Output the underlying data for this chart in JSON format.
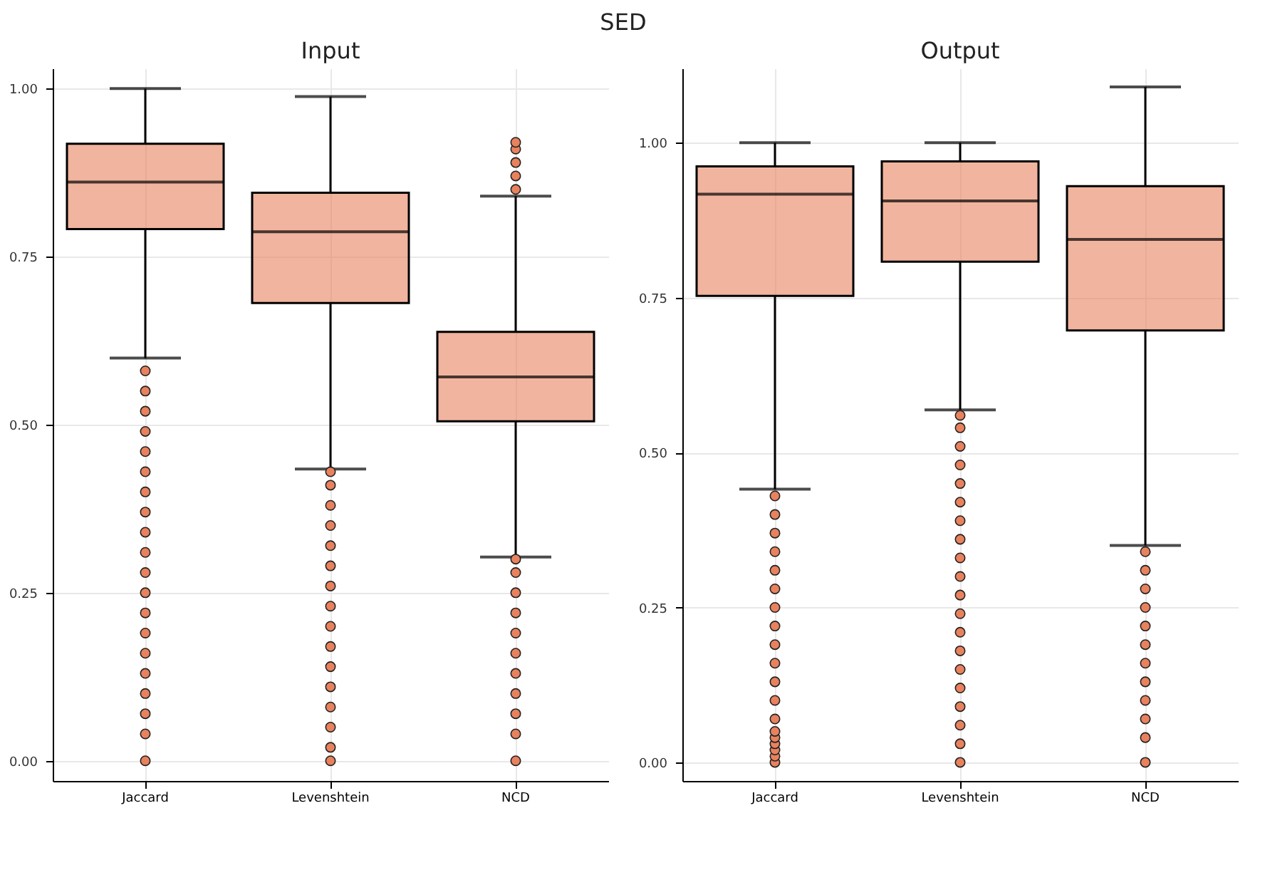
{
  "chart_data": [
    {
      "type": "box",
      "title": "Input",
      "annotations": [
        "SED"
      ],
      "categories": [
        "Jaccard",
        "Levenshtein",
        "NCD"
      ],
      "ylim": [
        -0.03,
        1.03
      ],
      "yticks": [
        {
          "value": 0,
          "label": "0.00"
        },
        {
          "value": 0.25,
          "label": "0.25"
        },
        {
          "value": 0.5,
          "label": "0.50"
        },
        {
          "value": 0.75,
          "label": "0.75"
        },
        {
          "value": 1,
          "label": "1.00"
        }
      ],
      "grid": true,
      "marker": "circle",
      "series": [
        {
          "color": "#e8825e",
          "boxes": [
            {
              "low": 0.599,
              "q1": 0.791,
              "median": 0.861,
              "q3": 0.918,
              "high": 1.0,
              "outliers": [
                0.0,
                0.04,
                0.07,
                0.1,
                0.13,
                0.16,
                0.19,
                0.22,
                0.25,
                0.28,
                0.31,
                0.34,
                0.37,
                0.4,
                0.43,
                0.46,
                0.49,
                0.52,
                0.55,
                0.58
              ]
            },
            {
              "low": 0.434,
              "q1": 0.681,
              "median": 0.787,
              "q3": 0.845,
              "high": 0.988,
              "outliers": [
                0.0,
                0.02,
                0.05,
                0.08,
                0.11,
                0.14,
                0.17,
                0.2,
                0.23,
                0.26,
                0.29,
                0.32,
                0.35,
                0.38,
                0.41,
                0.43
              ]
            },
            {
              "low": 0.303,
              "q1": 0.505,
              "median": 0.571,
              "q3": 0.638,
              "high": 0.84,
              "outliers": [
                0.0,
                0.04,
                0.07,
                0.1,
                0.13,
                0.16,
                0.19,
                0.22,
                0.25,
                0.28,
                0.3,
                0.85,
                0.87,
                0.89,
                0.91,
                0.92
              ]
            }
          ]
        }
      ]
    },
    {
      "type": "box",
      "title": "Output",
      "categories": [
        "Jaccard",
        "Levenshtein",
        "NCD"
      ],
      "ylim": [
        -0.03,
        1.12
      ],
      "yticks": [
        {
          "value": 0,
          "label": "0.00"
        },
        {
          "value": 0.25,
          "label": "0.25"
        },
        {
          "value": 0.5,
          "label": "0.50"
        },
        {
          "value": 0.75,
          "label": "0.75"
        },
        {
          "value": 1,
          "label": "1.00"
        }
      ],
      "grid": true,
      "marker": "circle",
      "series": [
        {
          "color": "#e8825e",
          "boxes": [
            {
              "low": 0.441,
              "q1": 0.753,
              "median": 0.917,
              "q3": 0.962,
              "high": 1.0,
              "outliers": [
                0.0,
                0.01,
                0.02,
                0.03,
                0.04,
                0.05,
                0.07,
                0.1,
                0.13,
                0.16,
                0.19,
                0.22,
                0.25,
                0.28,
                0.31,
                0.34,
                0.37,
                0.4,
                0.43
              ]
            },
            {
              "low": 0.569,
              "q1": 0.808,
              "median": 0.906,
              "q3": 0.97,
              "high": 1.0,
              "outliers": [
                0.0,
                0.03,
                0.06,
                0.09,
                0.12,
                0.15,
                0.18,
                0.21,
                0.24,
                0.27,
                0.3,
                0.33,
                0.36,
                0.39,
                0.42,
                0.45,
                0.48,
                0.51,
                0.54,
                0.56
              ]
            },
            {
              "low": 0.35,
              "q1": 0.697,
              "median": 0.844,
              "q3": 0.93,
              "high": 1.09,
              "outliers": [
                0.0,
                0.04,
                0.07,
                0.1,
                0.13,
                0.16,
                0.19,
                0.22,
                0.25,
                0.28,
                0.31,
                0.34
              ]
            }
          ]
        }
      ]
    }
  ]
}
